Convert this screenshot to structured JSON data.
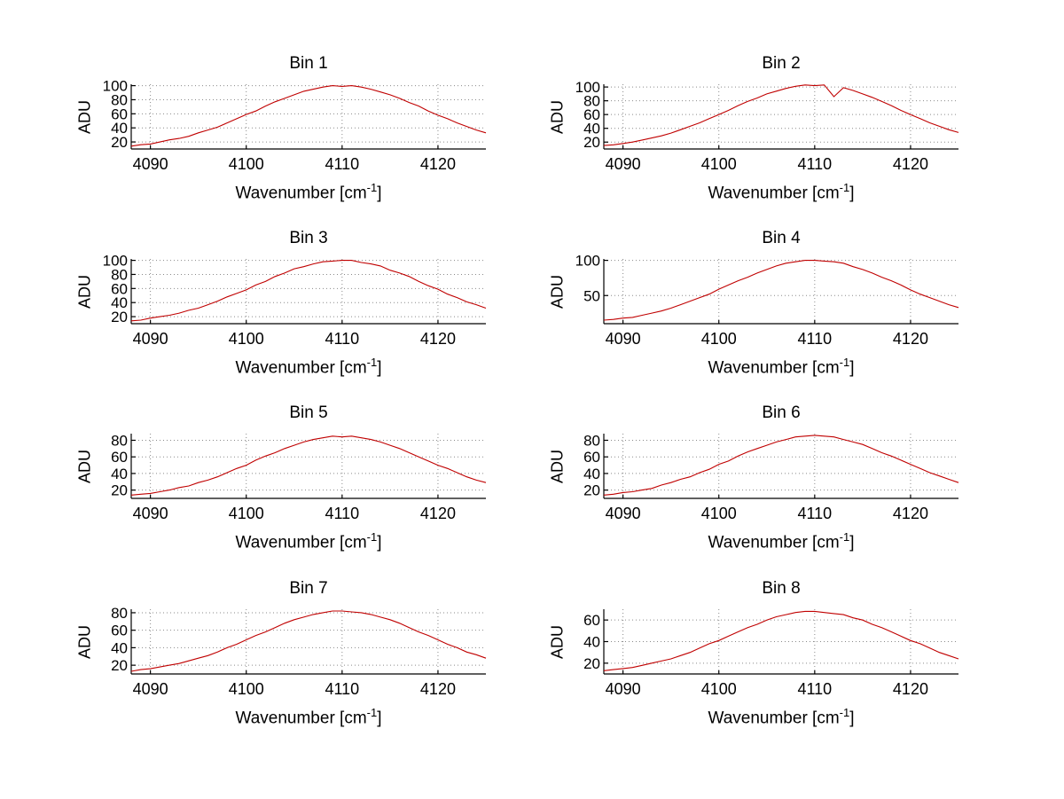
{
  "figure": {
    "background": "#ffffff",
    "line_color": "#c00000",
    "axis_color": "#000000",
    "grid_color": "#8a8a8a",
    "ylabel": "ADU",
    "xlabel_pre": "Wavenumber [cm",
    "xlabel_sup": "-1",
    "xlabel_post": "]"
  },
  "chart_data": [
    {
      "type": "line",
      "title": "Bin 1",
      "xlabel": "Wavenumber [cm^-1]",
      "ylabel": "ADU",
      "xlim": [
        4088,
        4125
      ],
      "ylim": [
        10,
        102
      ],
      "xticks": [
        4090,
        4100,
        4110,
        4120
      ],
      "yticks": [
        20,
        40,
        60,
        80,
        100
      ],
      "x": [
        4088,
        4089,
        4090,
        4091,
        4092,
        4093,
        4094,
        4095,
        4096,
        4097,
        4098,
        4099,
        4100,
        4101,
        4102,
        4103,
        4104,
        4105,
        4106,
        4107,
        4108,
        4109,
        4110,
        4111,
        4112,
        4113,
        4114,
        4115,
        4116,
        4117,
        4118,
        4119,
        4120,
        4121,
        4122,
        4123,
        4124,
        4125
      ],
      "y": [
        14,
        16,
        17,
        20,
        23,
        25,
        28,
        33,
        37,
        41,
        47,
        53,
        59,
        64,
        71,
        77,
        82,
        87,
        92,
        95,
        98,
        100,
        99,
        100,
        98,
        95,
        91,
        87,
        82,
        76,
        71,
        64,
        58,
        53,
        47,
        42,
        37,
        33
      ]
    },
    {
      "type": "line",
      "title": "Bin 2",
      "xlabel": "Wavenumber [cm^-1]",
      "ylabel": "ADU",
      "xlim": [
        4088,
        4125
      ],
      "ylim": [
        10,
        104
      ],
      "xticks": [
        4090,
        4100,
        4110,
        4120
      ],
      "yticks": [
        20,
        40,
        60,
        80,
        100
      ],
      "x": [
        4088,
        4089,
        4090,
        4091,
        4092,
        4093,
        4094,
        4095,
        4096,
        4097,
        4098,
        4099,
        4100,
        4101,
        4102,
        4103,
        4104,
        4105,
        4106,
        4107,
        4108,
        4109,
        4110,
        4111,
        4112,
        4113,
        4114,
        4115,
        4116,
        4117,
        4118,
        4119,
        4120,
        4121,
        4122,
        4123,
        4124,
        4125
      ],
      "y": [
        15,
        16,
        18,
        20,
        23,
        26,
        29,
        33,
        38,
        43,
        48,
        54,
        60,
        66,
        73,
        79,
        84,
        90,
        94,
        98,
        101,
        103,
        102,
        103,
        86,
        99,
        95,
        90,
        85,
        79,
        73,
        66,
        60,
        54,
        48,
        43,
        38,
        34
      ]
    },
    {
      "type": "line",
      "title": "Bin 3",
      "xlabel": "Wavenumber [cm^-1]",
      "ylabel": "ADU",
      "xlim": [
        4088,
        4125
      ],
      "ylim": [
        10,
        102
      ],
      "xticks": [
        4090,
        4100,
        4110,
        4120
      ],
      "yticks": [
        20,
        40,
        60,
        80,
        100
      ],
      "x": [
        4088,
        4089,
        4090,
        4091,
        4092,
        4093,
        4094,
        4095,
        4096,
        4097,
        4098,
        4099,
        4100,
        4101,
        4102,
        4103,
        4104,
        4105,
        4106,
        4107,
        4108,
        4109,
        4110,
        4111,
        4112,
        4113,
        4114,
        4115,
        4116,
        4117,
        4118,
        4119,
        4120,
        4121,
        4122,
        4123,
        4124,
        4125
      ],
      "y": [
        14,
        15,
        18,
        20,
        22,
        25,
        29,
        32,
        37,
        42,
        48,
        53,
        58,
        65,
        70,
        77,
        82,
        88,
        91,
        95,
        98,
        99,
        100,
        100,
        97,
        95,
        92,
        86,
        82,
        77,
        70,
        64,
        59,
        52,
        47,
        41,
        37,
        32
      ]
    },
    {
      "type": "line",
      "title": "Bin 4",
      "xlabel": "Wavenumber [cm^-1]",
      "ylabel": "ADU",
      "xlim": [
        4088,
        4125
      ],
      "ylim": [
        10,
        102
      ],
      "xticks": [
        4090,
        4100,
        4110,
        4120
      ],
      "yticks": [
        50,
        100
      ],
      "x": [
        4088,
        4089,
        4090,
        4091,
        4092,
        4093,
        4094,
        4095,
        4096,
        4097,
        4098,
        4099,
        4100,
        4101,
        4102,
        4103,
        4104,
        4105,
        4106,
        4107,
        4108,
        4109,
        4110,
        4111,
        4112,
        4113,
        4114,
        4115,
        4116,
        4117,
        4118,
        4119,
        4120,
        4121,
        4122,
        4123,
        4124,
        4125
      ],
      "y": [
        15,
        16,
        18,
        19,
        22,
        25,
        28,
        32,
        37,
        42,
        47,
        52,
        59,
        65,
        71,
        76,
        82,
        87,
        92,
        96,
        98,
        100,
        100,
        99,
        98,
        96,
        91,
        87,
        82,
        76,
        71,
        65,
        58,
        52,
        47,
        42,
        37,
        33
      ]
    },
    {
      "type": "line",
      "title": "Bin 5",
      "xlabel": "Wavenumber [cm^-1]",
      "ylabel": "ADU",
      "xlim": [
        4088,
        4125
      ],
      "ylim": [
        10,
        88
      ],
      "xticks": [
        4090,
        4100,
        4110,
        4120
      ],
      "yticks": [
        20,
        40,
        60,
        80
      ],
      "x": [
        4088,
        4089,
        4090,
        4091,
        4092,
        4093,
        4094,
        4095,
        4096,
        4097,
        4098,
        4099,
        4100,
        4101,
        4102,
        4103,
        4104,
        4105,
        4106,
        4107,
        4108,
        4109,
        4110,
        4111,
        4112,
        4113,
        4114,
        4115,
        4116,
        4117,
        4118,
        4119,
        4120,
        4121,
        4122,
        4123,
        4124,
        4125
      ],
      "y": [
        14,
        15,
        16,
        18,
        20,
        23,
        25,
        29,
        32,
        36,
        41,
        46,
        50,
        56,
        61,
        65,
        70,
        74,
        78,
        81,
        83,
        85,
        84,
        85,
        83,
        81,
        78,
        74,
        70,
        65,
        60,
        55,
        50,
        46,
        41,
        36,
        32,
        29
      ]
    },
    {
      "type": "line",
      "title": "Bin 6",
      "xlabel": "Wavenumber [cm^-1]",
      "ylabel": "ADU",
      "xlim": [
        4088,
        4125
      ],
      "ylim": [
        10,
        88
      ],
      "xticks": [
        4090,
        4100,
        4110,
        4120
      ],
      "yticks": [
        20,
        40,
        60,
        80
      ],
      "x": [
        4088,
        4089,
        4090,
        4091,
        4092,
        4093,
        4094,
        4095,
        4096,
        4097,
        4098,
        4099,
        4100,
        4101,
        4102,
        4103,
        4104,
        4105,
        4106,
        4107,
        4108,
        4109,
        4110,
        4111,
        4112,
        4113,
        4114,
        4115,
        4116,
        4117,
        4118,
        4119,
        4120,
        4121,
        4122,
        4123,
        4124,
        4125
      ],
      "y": [
        14,
        15,
        17,
        18,
        20,
        22,
        26,
        29,
        33,
        36,
        41,
        45,
        51,
        55,
        61,
        66,
        70,
        74,
        78,
        81,
        84,
        85,
        86,
        85,
        84,
        81,
        78,
        75,
        70,
        65,
        61,
        56,
        51,
        46,
        41,
        37,
        33,
        29
      ]
    },
    {
      "type": "line",
      "title": "Bin 7",
      "xlabel": "Wavenumber [cm^-1]",
      "ylabel": "ADU",
      "xlim": [
        4088,
        4125
      ],
      "ylim": [
        10,
        84
      ],
      "xticks": [
        4090,
        4100,
        4110,
        4120
      ],
      "yticks": [
        20,
        40,
        60,
        80
      ],
      "x": [
        4088,
        4089,
        4090,
        4091,
        4092,
        4093,
        4094,
        4095,
        4096,
        4097,
        4098,
        4099,
        4100,
        4101,
        4102,
        4103,
        4104,
        4105,
        4106,
        4107,
        4108,
        4109,
        4110,
        4111,
        4112,
        4113,
        4114,
        4115,
        4116,
        4117,
        4118,
        4119,
        4120,
        4121,
        4122,
        4123,
        4124,
        4125
      ],
      "y": [
        13,
        15,
        16,
        18,
        20,
        22,
        25,
        28,
        31,
        35,
        40,
        44,
        49,
        54,
        58,
        63,
        68,
        72,
        75,
        78,
        80,
        82,
        82,
        81,
        80,
        78,
        75,
        72,
        68,
        63,
        58,
        54,
        49,
        44,
        40,
        35,
        32,
        28
      ]
    },
    {
      "type": "line",
      "title": "Bin 8",
      "xlabel": "Wavenumber [cm^-1]",
      "ylabel": "ADU",
      "xlim": [
        4088,
        4125
      ],
      "ylim": [
        10,
        70
      ],
      "xticks": [
        4090,
        4100,
        4110,
        4120
      ],
      "yticks": [
        20,
        40,
        60
      ],
      "x": [
        4088,
        4089,
        4090,
        4091,
        4092,
        4093,
        4094,
        4095,
        4096,
        4097,
        4098,
        4099,
        4100,
        4101,
        4102,
        4103,
        4104,
        4105,
        4106,
        4107,
        4108,
        4109,
        4110,
        4111,
        4112,
        4113,
        4114,
        4115,
        4116,
        4117,
        4118,
        4119,
        4120,
        4121,
        4122,
        4123,
        4124,
        4125
      ],
      "y": [
        13,
        14,
        15,
        16,
        18,
        20,
        22,
        24,
        27,
        30,
        34,
        38,
        41,
        45,
        49,
        53,
        56,
        60,
        63,
        65,
        67,
        68,
        68,
        67,
        66,
        65,
        62,
        60,
        56,
        53,
        49,
        45,
        41,
        38,
        34,
        30,
        27,
        24
      ]
    }
  ]
}
